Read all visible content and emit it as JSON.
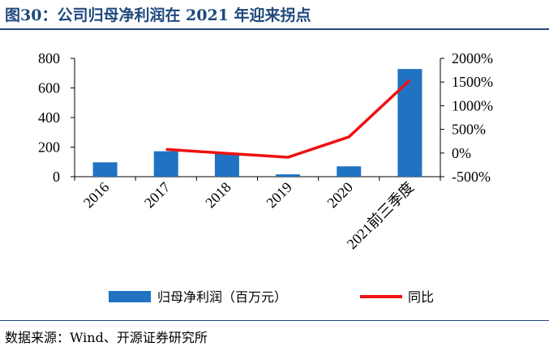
{
  "title": "图30：公司归母净利润在 2021 年迎来拐点",
  "source": "数据来源：Wind、开源证券研究所",
  "colors": {
    "bar": "#1f73c2",
    "line": "#ee1111",
    "rule": "#1f497d"
  },
  "chart_data": {
    "type": "bar+line",
    "categories": [
      "2016",
      "2017",
      "2018",
      "2019",
      "2020",
      "2021前三季度"
    ],
    "series": [
      {
        "name": "归母净利润（百万元）",
        "type": "bar",
        "axis": "left",
        "values": [
          97,
          172,
          158,
          16,
          70,
          728
        ]
      },
      {
        "name": "同比",
        "type": "line",
        "axis": "right",
        "values": [
          null,
          77,
          -8,
          -90,
          340,
          1540
        ]
      }
    ],
    "y_left": {
      "lim": [
        0,
        800
      ],
      "ticks": [
        0,
        200,
        400,
        600,
        800
      ],
      "tick_labels": [
        "0",
        "200",
        "400",
        "600",
        "800"
      ]
    },
    "y_right": {
      "lim": [
        -500,
        2000
      ],
      "ticks": [
        -500,
        0,
        500,
        1000,
        1500,
        2000
      ],
      "tick_labels": [
        "-500%",
        "0%",
        "500%",
        "1000%",
        "1500%",
        "2000%"
      ]
    },
    "legend": {
      "placement": "bottom"
    },
    "grid": false
  }
}
